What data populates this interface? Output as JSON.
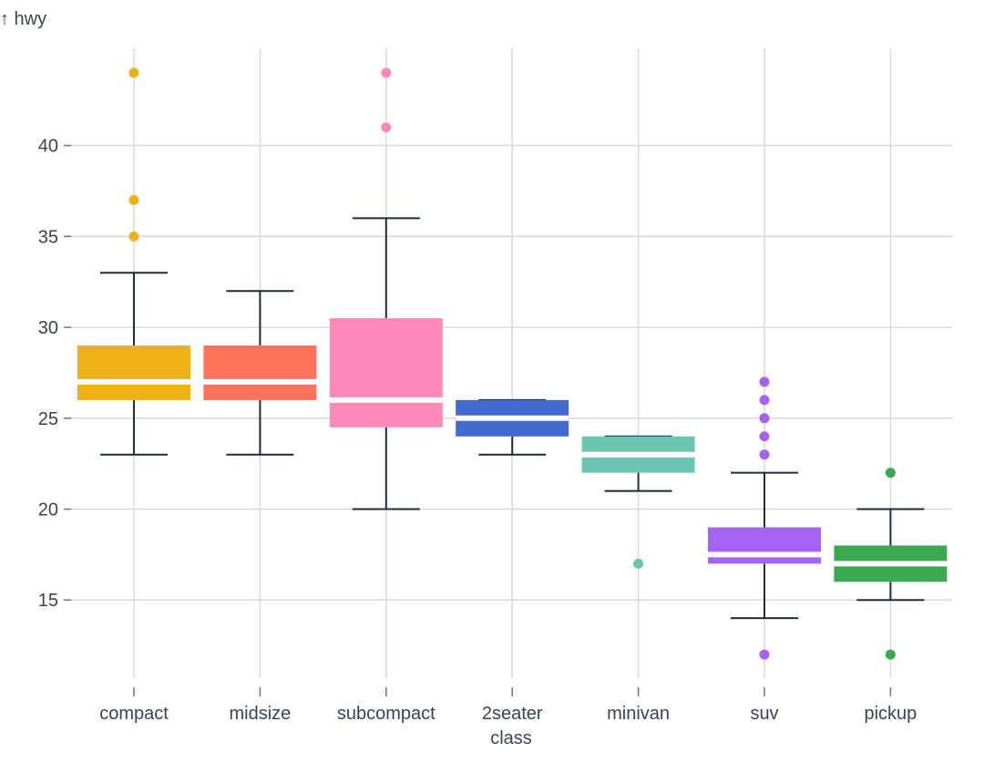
{
  "chart_data": {
    "type": "boxplot",
    "y_axis_label": "↑ hwy",
    "x_axis_label": "class",
    "ylim": [
      10.7,
      46
    ],
    "y_ticks": [
      15,
      20,
      25,
      30,
      35,
      40
    ],
    "grid": true,
    "categories": [
      {
        "name": "compact",
        "color": "#efb118",
        "q1": 26,
        "median": 27,
        "q3": 29,
        "whisker_low": 23,
        "whisker_high": 33,
        "outliers": [
          35,
          37,
          44
        ]
      },
      {
        "name": "midsize",
        "color": "#ff725c",
        "q1": 26,
        "median": 27,
        "q3": 29,
        "whisker_low": 23,
        "whisker_high": 32,
        "outliers": []
      },
      {
        "name": "subcompact",
        "color": "#ff8ab7",
        "q1": 24.5,
        "median": 26,
        "q3": 30.5,
        "whisker_low": 20,
        "whisker_high": 36,
        "outliers": [
          41,
          44
        ]
      },
      {
        "name": "2seater",
        "color": "#4269d0",
        "q1": 24,
        "median": 25,
        "q3": 26,
        "whisker_low": 23,
        "whisker_high": 26,
        "outliers": []
      },
      {
        "name": "minivan",
        "color": "#6cc5b0",
        "q1": 22,
        "median": 23,
        "q3": 24,
        "whisker_low": 21,
        "whisker_high": 24,
        "outliers": [
          17
        ]
      },
      {
        "name": "suv",
        "color": "#a463f2",
        "q1": 17,
        "median": 17.5,
        "q3": 19,
        "whisker_low": 14,
        "whisker_high": 22,
        "outliers": [
          12,
          23,
          24,
          25,
          26,
          27
        ]
      },
      {
        "name": "pickup",
        "color": "#3ca951",
        "q1": 16,
        "median": 17,
        "q3": 18,
        "whisker_low": 15,
        "whisker_high": 20,
        "outliers": [
          12,
          22
        ]
      }
    ]
  }
}
